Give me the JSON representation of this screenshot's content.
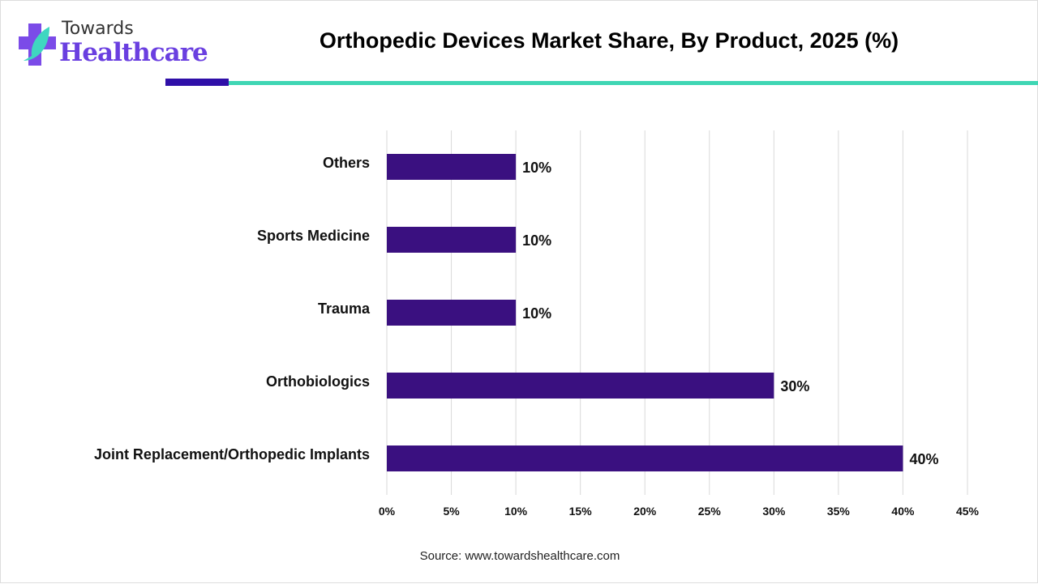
{
  "logo": {
    "line1": "Towards",
    "line2": "Healthcare",
    "colors": {
      "cross": "#7b4be8",
      "leaf": "#3fd6c0",
      "text": "#6a3fe0"
    }
  },
  "title": "Orthopedic Devices Market Share, By Product, 2025 (%)",
  "source": "Source: www.towardshealthcare.com",
  "chart_data": {
    "type": "bar",
    "orientation": "horizontal",
    "title": "Orthopedic Devices Market Share, By Product, 2025 (%)",
    "categories": [
      "Others",
      "Sports Medicine",
      "Trauma",
      "Orthobiologics",
      "Joint Replacement/Orthopedic Implants"
    ],
    "values": [
      10,
      10,
      10,
      30,
      40
    ],
    "data_labels": [
      "10%",
      "10%",
      "10%",
      "30%",
      "40%"
    ],
    "xlim": [
      0,
      45
    ],
    "xticks": [
      "0%",
      "5%",
      "10%",
      "15%",
      "20%",
      "25%",
      "30%",
      "35%",
      "40%",
      "45%"
    ],
    "grid": "vertical",
    "bar_color": "#3a1080",
    "legend": "none"
  }
}
